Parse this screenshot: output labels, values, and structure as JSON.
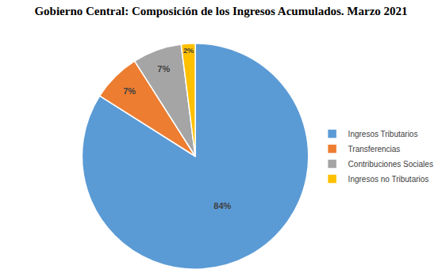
{
  "chart_data": {
    "type": "pie",
    "title": "Gobierno Central: Composición de los Ingresos Acumulados. Marzo 2021",
    "categories": [
      "Ingresos Tributarios",
      "Transferencias",
      "Contribuciones Sociales",
      "Ingresos no Tributarios"
    ],
    "values": [
      84,
      7,
      7,
      2
    ],
    "value_labels": [
      "84%",
      "7%",
      "7%",
      "2%"
    ],
    "colors": [
      "#5b9bd5",
      "#ed7d31",
      "#a5a5a5",
      "#ffc000"
    ],
    "data_labels": true,
    "legend": "right"
  }
}
